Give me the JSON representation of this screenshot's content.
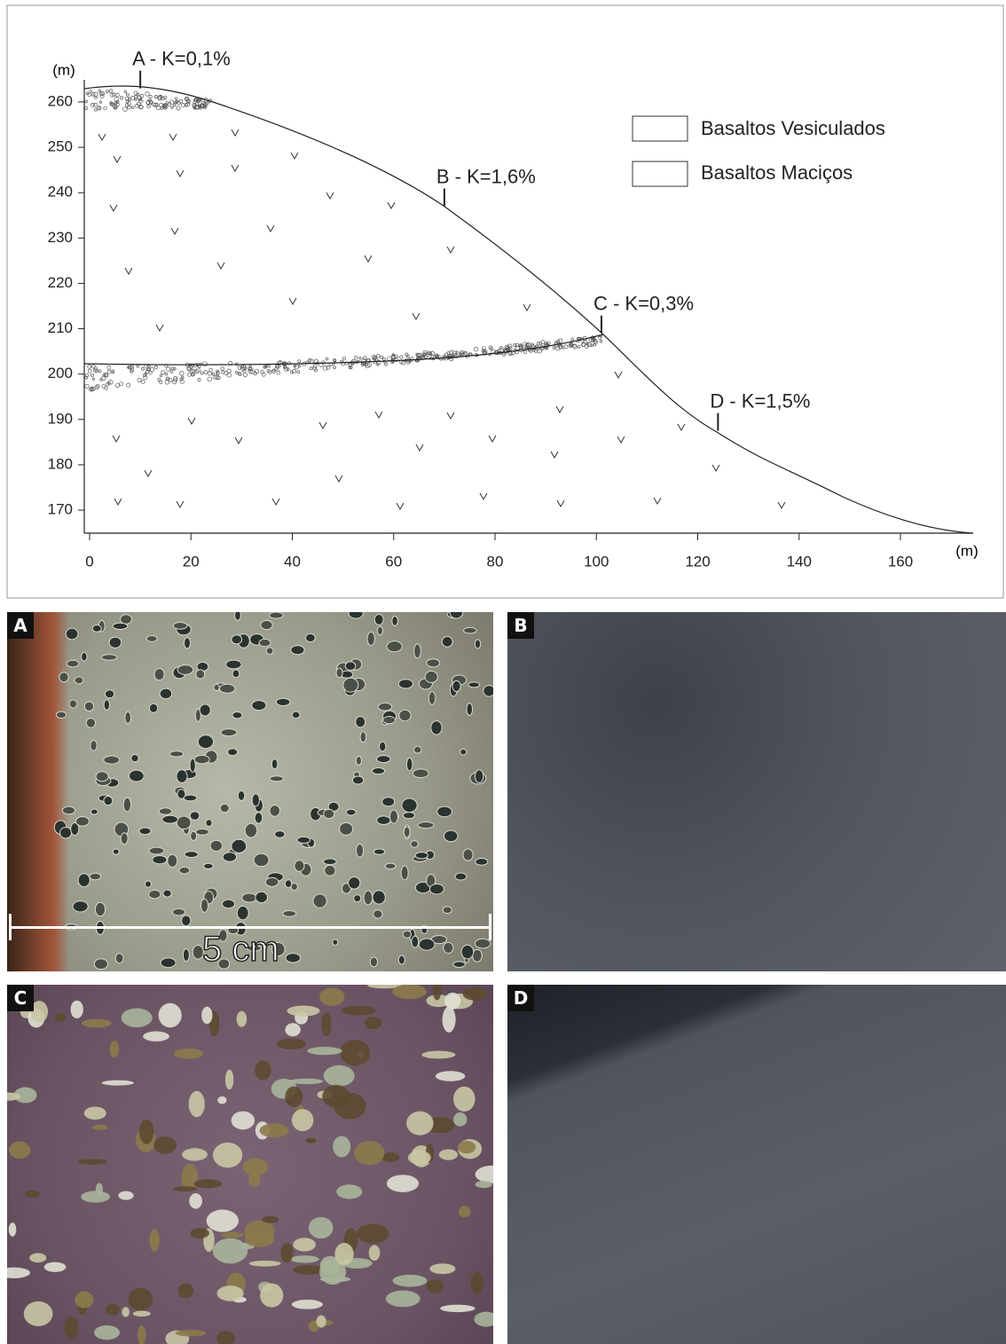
{
  "figure": {
    "axes": {
      "y_unit": "(m)",
      "x_unit": "(m)",
      "xlim": [
        0,
        175
      ],
      "ylim": [
        165,
        265
      ],
      "xticks": [
        0,
        20,
        40,
        60,
        80,
        100,
        120,
        140,
        160
      ],
      "yticks": [
        170,
        180,
        190,
        200,
        210,
        220,
        230,
        240,
        250,
        260
      ]
    },
    "annotations": [
      {
        "label": "A - K=0,1%",
        "x": 10,
        "y": 263
      },
      {
        "label": "B - K=1,6%",
        "x": 70,
        "y": 237
      },
      {
        "label": "C - K=0,3%",
        "x": 101,
        "y": 209
      },
      {
        "label": "D - K=1,5%",
        "x": 124,
        "y": 187.5
      }
    ],
    "legend": [
      {
        "label": "Basaltos Vesiculados"
      },
      {
        "label": "Basaltos Maciços"
      }
    ],
    "photos": [
      {
        "label": "A",
        "scale": "5 cm"
      },
      {
        "label": "B"
      },
      {
        "label": "C"
      },
      {
        "label": "D"
      }
    ]
  }
}
